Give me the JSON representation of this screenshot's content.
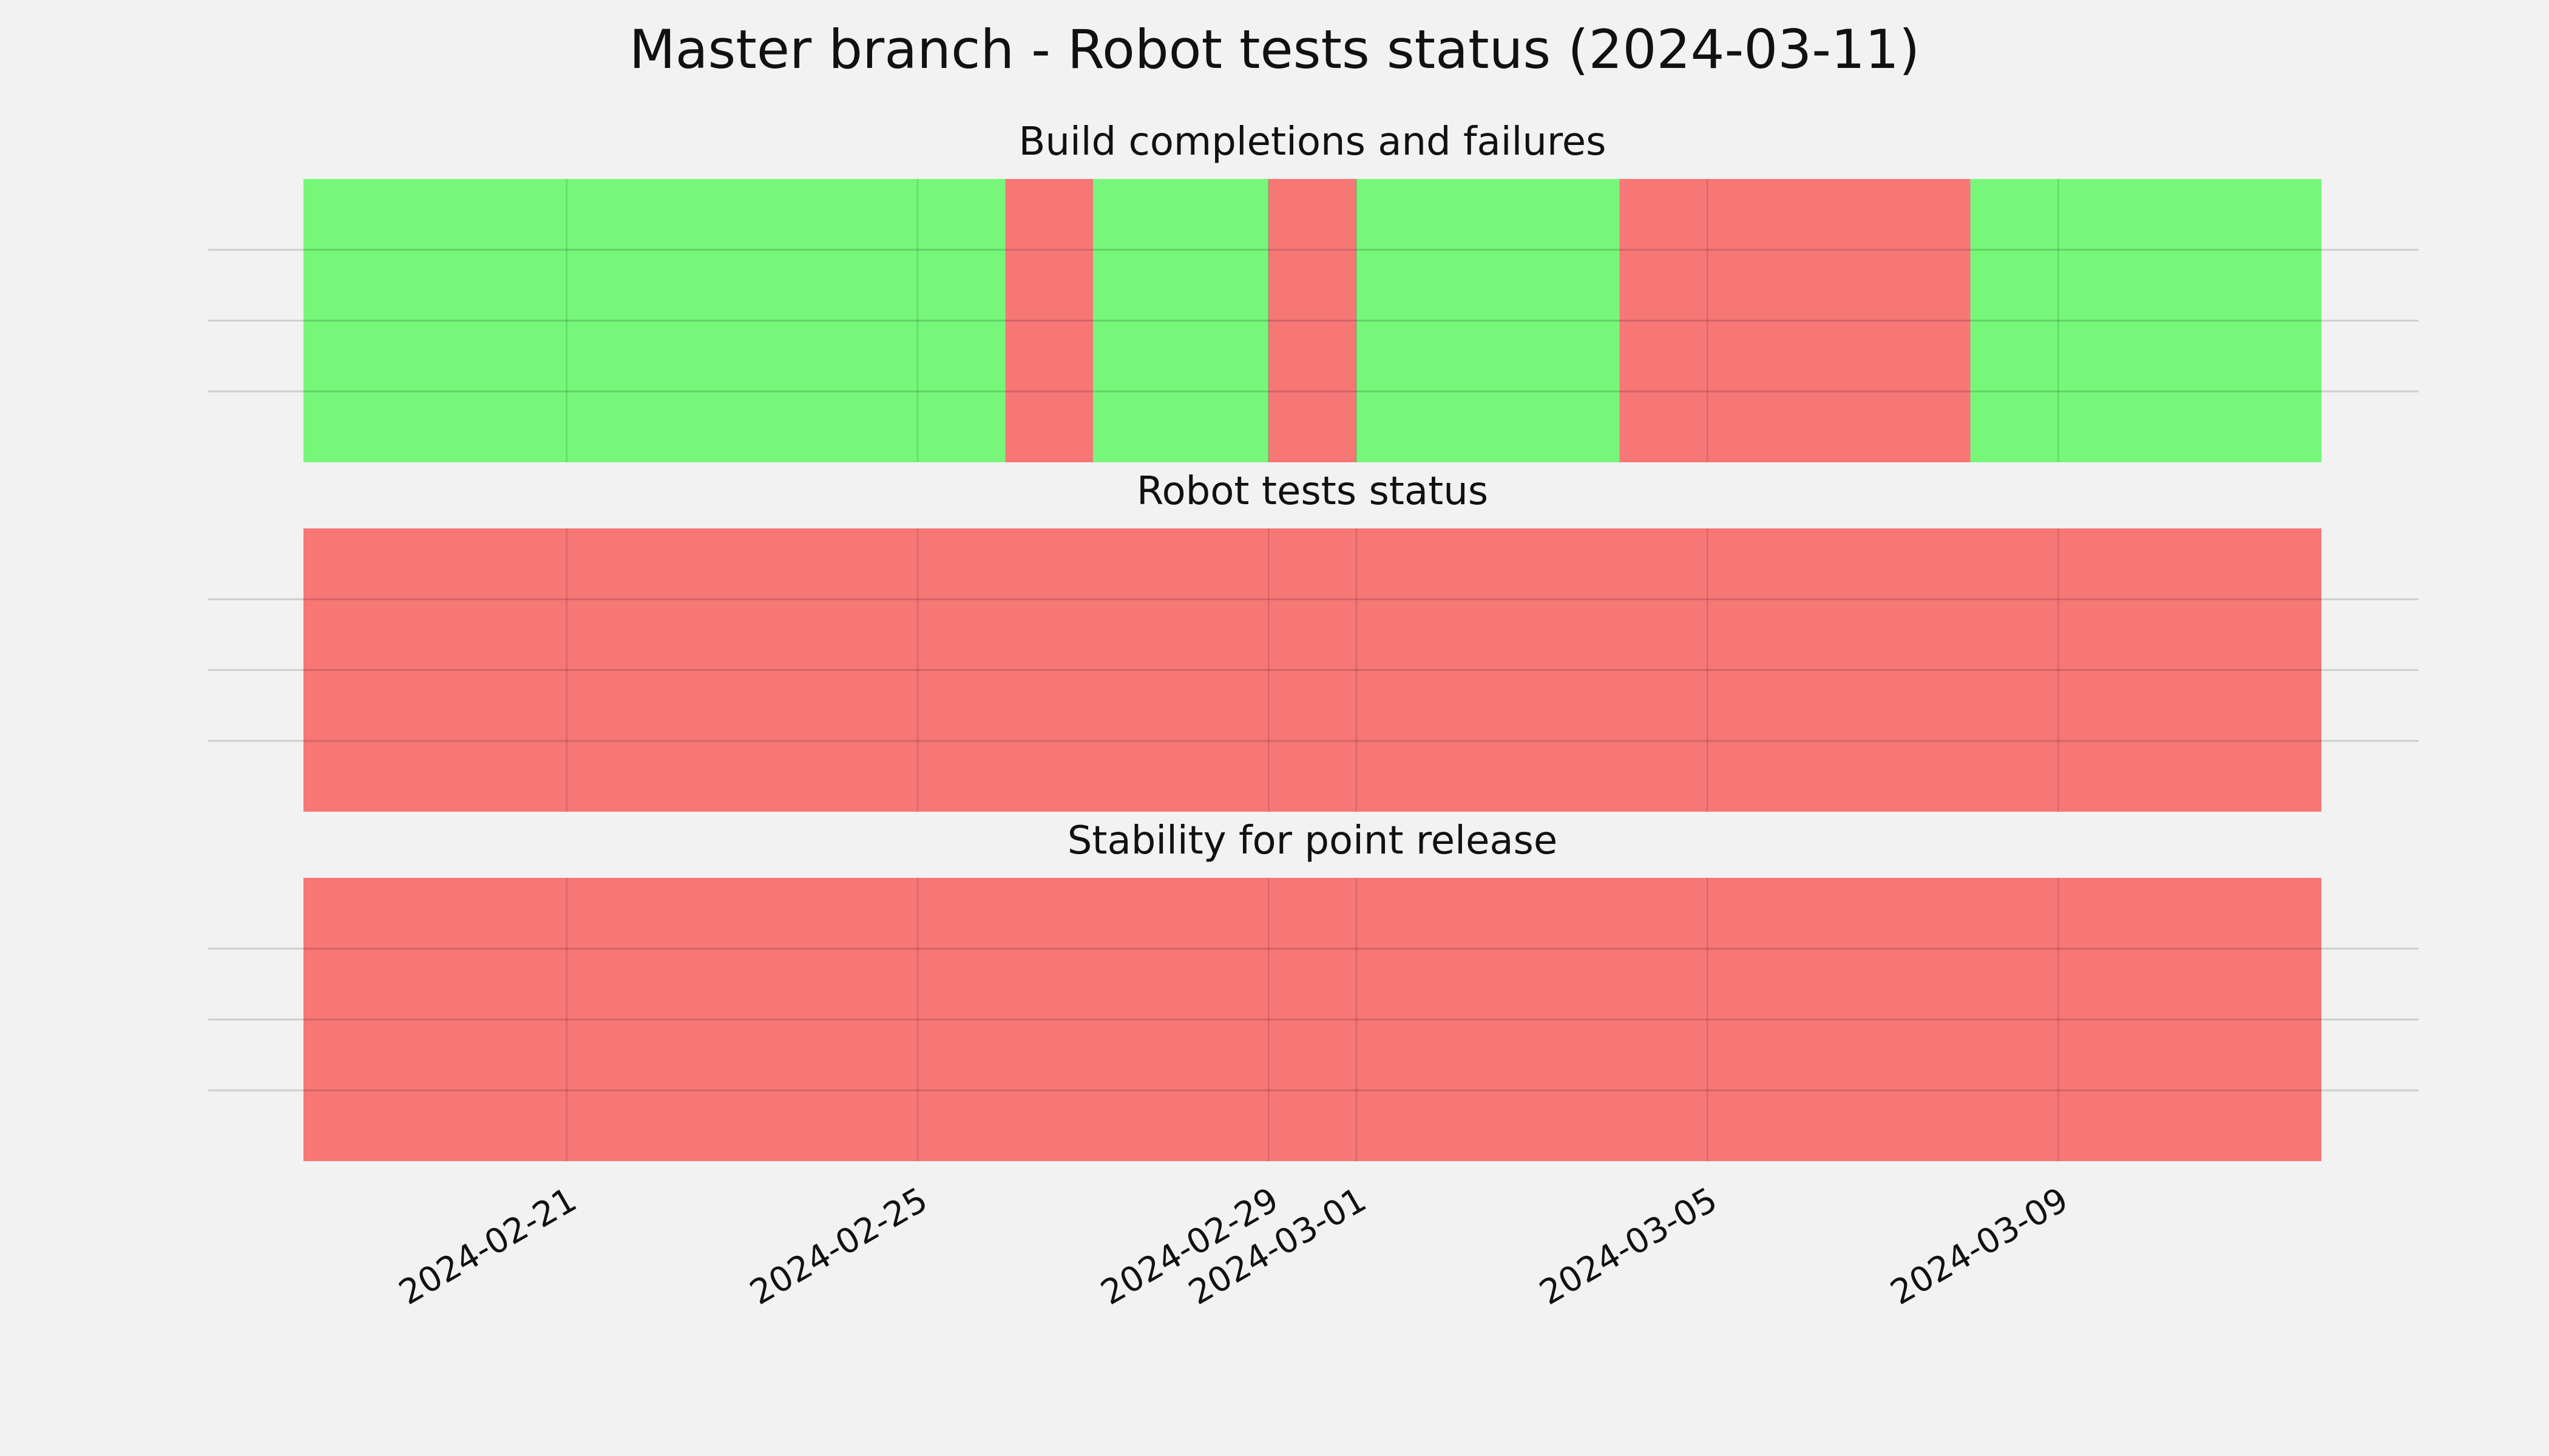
{
  "chart_data": {
    "type": "timeline",
    "title": "Master branch - Robot tests status (2024-03-11)",
    "x_range": [
      "2024-02-18",
      "2024-03-12"
    ],
    "x_ticks": [
      "2024-02-21",
      "2024-02-25",
      "2024-02-29",
      "2024-03-01",
      "2024-03-05",
      "2024-03-09"
    ],
    "grid": true,
    "status_colors": {
      "pass": "#76f77a",
      "fail": "#f77777"
    },
    "panels": [
      {
        "title": "Build completions and failures",
        "segments": [
          {
            "start": "2024-02-18",
            "end": "2024-02-26",
            "status": "pass"
          },
          {
            "start": "2024-02-26",
            "end": "2024-02-27",
            "status": "fail"
          },
          {
            "start": "2024-02-27",
            "end": "2024-02-29",
            "status": "pass"
          },
          {
            "start": "2024-02-29",
            "end": "2024-03-01",
            "status": "fail"
          },
          {
            "start": "2024-03-01",
            "end": "2024-03-04",
            "status": "pass"
          },
          {
            "start": "2024-03-04",
            "end": "2024-03-08",
            "status": "fail"
          },
          {
            "start": "2024-03-08",
            "end": "2024-03-12",
            "status": "pass"
          }
        ]
      },
      {
        "title": "Robot tests status",
        "segments": [
          {
            "start": "2024-02-18",
            "end": "2024-03-12",
            "status": "fail"
          }
        ]
      },
      {
        "title": "Stability for point release",
        "segments": [
          {
            "start": "2024-02-18",
            "end": "2024-03-12",
            "status": "fail"
          }
        ]
      }
    ]
  }
}
